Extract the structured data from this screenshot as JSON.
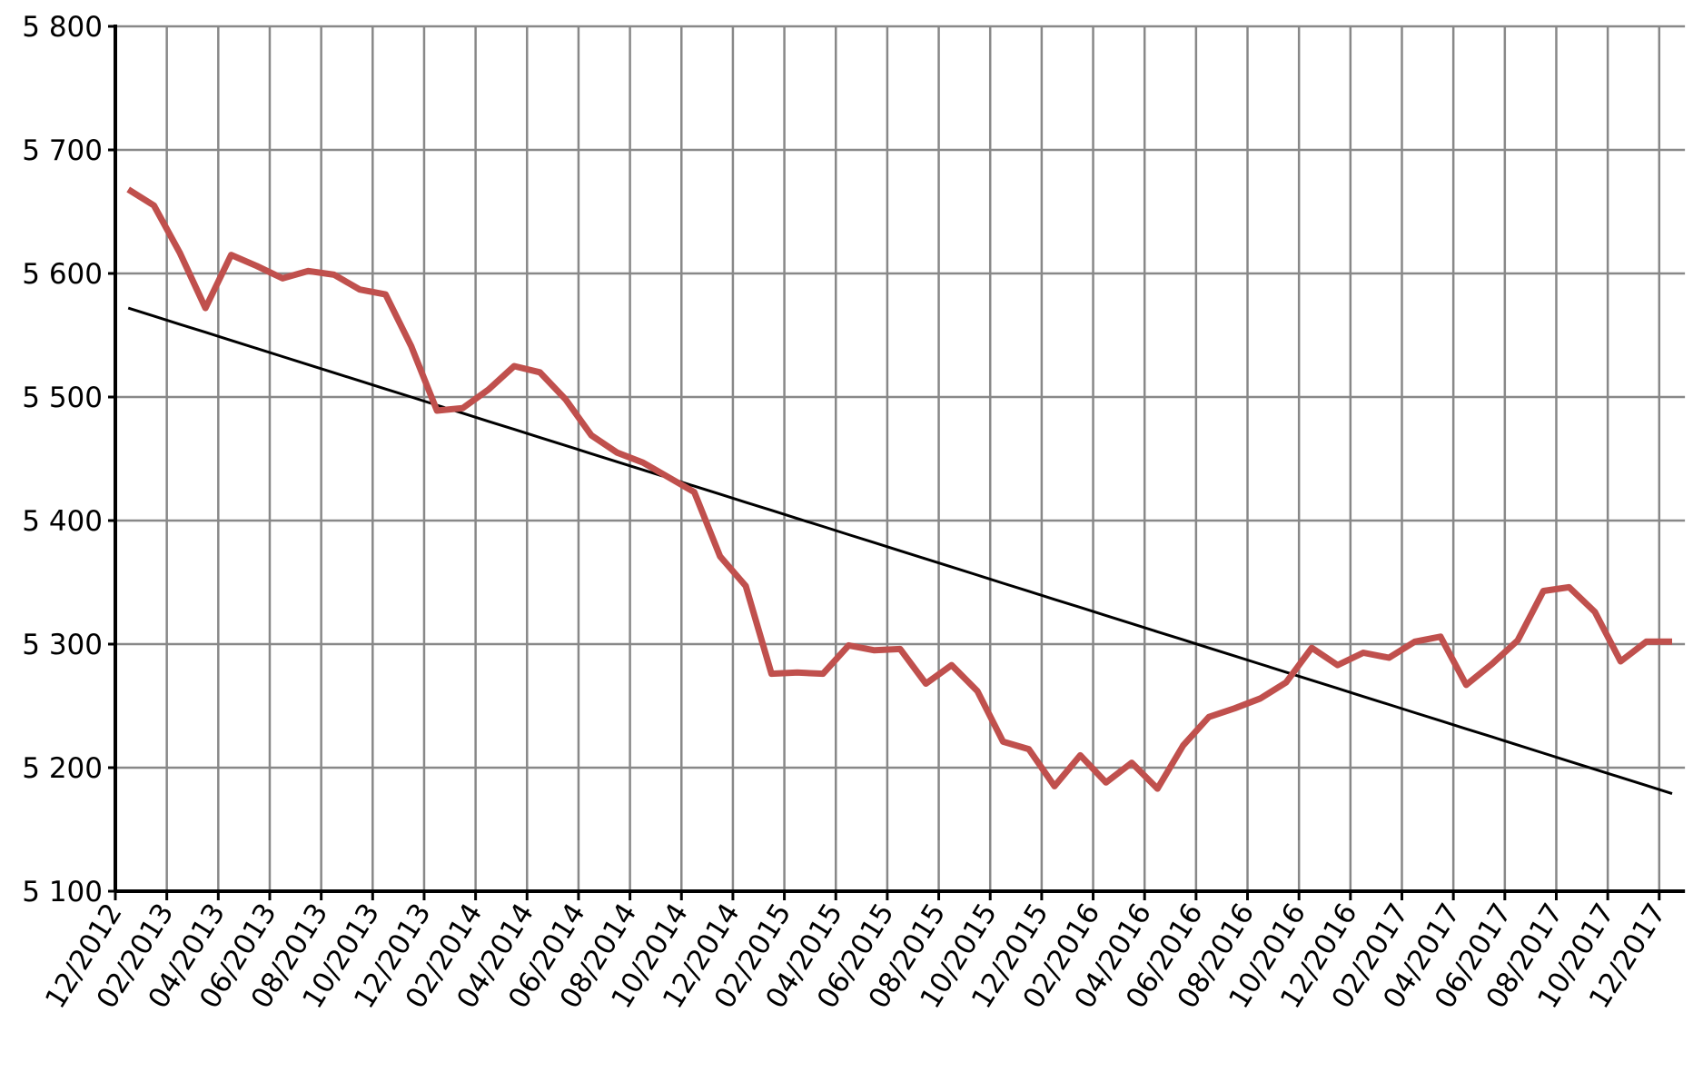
{
  "chart_data": {
    "type": "line",
    "categories": [
      "12/2012",
      null,
      "02/2013",
      null,
      "04/2013",
      null,
      "06/2013",
      null,
      "08/2013",
      null,
      "10/2013",
      null,
      "12/2013",
      null,
      "02/2014",
      null,
      "04/2014",
      null,
      "06/2014",
      null,
      "08/2014",
      null,
      "10/2014",
      null,
      "12/2014",
      null,
      "02/2015",
      null,
      "04/2015",
      null,
      "06/2015",
      null,
      "08/2015",
      null,
      "10/2015",
      null,
      "12/2015",
      null,
      "02/2016",
      null,
      "04/2016",
      null,
      "06/2016",
      null,
      "08/2016",
      null,
      "10/2016",
      null,
      "12/2016",
      null,
      "02/2017",
      null,
      "04/2017",
      null,
      "06/2017",
      null,
      "08/2017",
      null,
      "10/2017",
      null,
      "12/2017"
    ],
    "series": [
      {
        "color": "#c0504d",
        "values": [
          5668,
          5655,
          5617,
          5572,
          5615,
          5606,
          5596,
          5602,
          5599,
          5587,
          5583,
          5541,
          5489,
          5491,
          5506,
          5525,
          5520,
          5498,
          5469,
          5455,
          5447,
          5435,
          5423,
          5371,
          5347,
          5276,
          5277,
          5276,
          5299,
          5295,
          5296,
          5268,
          5283,
          5262,
          5221,
          5215,
          5185,
          5210,
          5188,
          5204,
          5183,
          5218,
          5241,
          5248,
          5256,
          5269,
          5297,
          5283,
          5293,
          5289,
          5302,
          5306,
          5267,
          5284,
          5303,
          5343,
          5346,
          5326,
          5286,
          5302,
          5302
        ]
      },
      {
        "color": "#000000",
        "values": [
          5572.0,
          5565.5,
          5558.9,
          5552.4,
          5545.8,
          5539.3,
          5532.7,
          5526.2,
          5519.6,
          5513.1,
          5506.5,
          5500.0,
          5493.4,
          5486.9,
          5480.3,
          5473.8,
          5467.2,
          5460.7,
          5454.1,
          5447.6,
          5441.0,
          5434.5,
          5427.9,
          5421.4,
          5414.8,
          5408.3,
          5401.7,
          5395.2,
          5388.6,
          5382.1,
          5375.5,
          5369.0,
          5362.4,
          5355.9,
          5349.3,
          5342.8,
          5336.2,
          5329.7,
          5323.1,
          5316.6,
          5310.0,
          5303.5,
          5296.9,
          5290.4,
          5283.8,
          5277.3,
          5270.7,
          5264.2,
          5257.6,
          5251.1,
          5244.5,
          5238.0,
          5231.4,
          5224.9,
          5218.3,
          5211.8,
          5205.2,
          5198.7,
          5192.1,
          5185.6,
          5179.0
        ]
      }
    ],
    "ylim": [
      5100,
      5800
    ],
    "yticks": [
      {
        "value": 5100,
        "label": "5 100"
      },
      {
        "value": 5200,
        "label": "5 200"
      },
      {
        "value": 5300,
        "label": "5 300"
      },
      {
        "value": 5400,
        "label": "5 400"
      },
      {
        "value": 5500,
        "label": "5 500"
      },
      {
        "value": 5600,
        "label": "5 600"
      },
      {
        "value": 5700,
        "label": "5 700"
      },
      {
        "value": 5800,
        "label": "5 800"
      }
    ],
    "grid": true
  }
}
